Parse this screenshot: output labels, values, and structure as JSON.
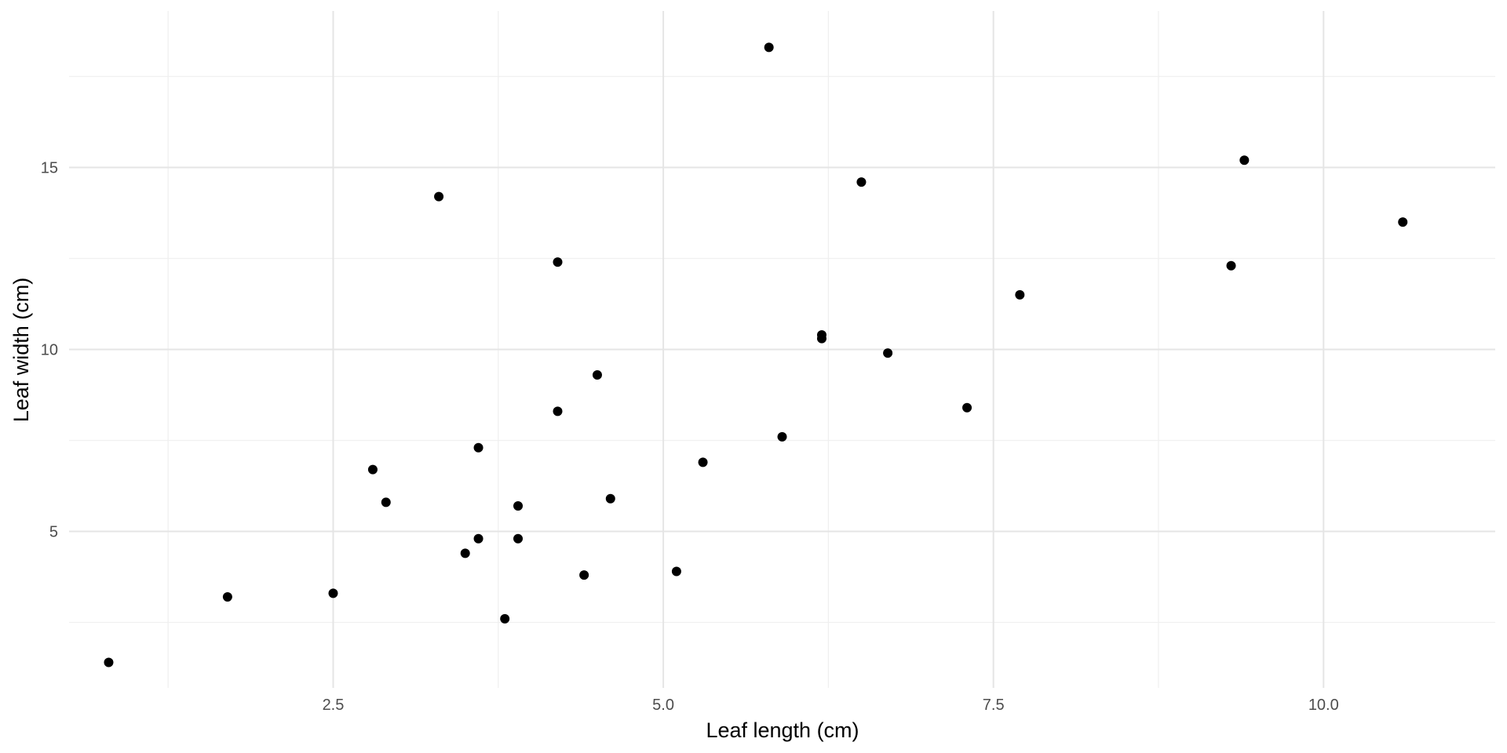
{
  "chart_data": {
    "type": "scatter",
    "title": "",
    "xlabel": "Leaf length (cm)",
    "ylabel": "Leaf width (cm)",
    "xlim": [
      0.5,
      11.3
    ],
    "ylim": [
      0.7,
      19.3
    ],
    "x_ticks": [
      2.5,
      5.0,
      7.5,
      10.0
    ],
    "x_tick_labels": [
      "2.5",
      "5.0",
      "7.5",
      "10.0"
    ],
    "x_minor_ticks": [
      1.25,
      3.75,
      6.25,
      8.75
    ],
    "y_ticks": [
      5,
      10,
      15
    ],
    "y_tick_labels": [
      "5",
      "10",
      "15"
    ],
    "y_minor_ticks": [
      2.5,
      7.5,
      12.5,
      17.5
    ],
    "grid": true,
    "legend": "none",
    "point_color": "#000000",
    "series": [
      {
        "points": [
          {
            "x": 0.8,
            "y": 1.4
          },
          {
            "x": 1.7,
            "y": 3.2
          },
          {
            "x": 2.5,
            "y": 3.3
          },
          {
            "x": 2.8,
            "y": 6.7
          },
          {
            "x": 2.9,
            "y": 5.8
          },
          {
            "x": 3.3,
            "y": 14.2
          },
          {
            "x": 3.5,
            "y": 4.4
          },
          {
            "x": 3.6,
            "y": 7.3
          },
          {
            "x": 3.6,
            "y": 4.8
          },
          {
            "x": 3.8,
            "y": 2.6
          },
          {
            "x": 3.9,
            "y": 5.7
          },
          {
            "x": 3.9,
            "y": 4.8
          },
          {
            "x": 4.2,
            "y": 12.4
          },
          {
            "x": 4.2,
            "y": 8.3
          },
          {
            "x": 4.4,
            "y": 3.8
          },
          {
            "x": 4.5,
            "y": 9.3
          },
          {
            "x": 4.6,
            "y": 5.9
          },
          {
            "x": 5.1,
            "y": 3.9
          },
          {
            "x": 5.3,
            "y": 6.9
          },
          {
            "x": 5.8,
            "y": 18.3
          },
          {
            "x": 5.9,
            "y": 7.6
          },
          {
            "x": 6.2,
            "y": 10.4
          },
          {
            "x": 6.2,
            "y": 10.3
          },
          {
            "x": 6.5,
            "y": 14.6
          },
          {
            "x": 6.7,
            "y": 9.9
          },
          {
            "x": 7.3,
            "y": 8.4
          },
          {
            "x": 7.7,
            "y": 11.5
          },
          {
            "x": 9.3,
            "y": 12.3
          },
          {
            "x": 9.4,
            "y": 15.2
          },
          {
            "x": 10.6,
            "y": 13.5
          }
        ]
      }
    ]
  }
}
